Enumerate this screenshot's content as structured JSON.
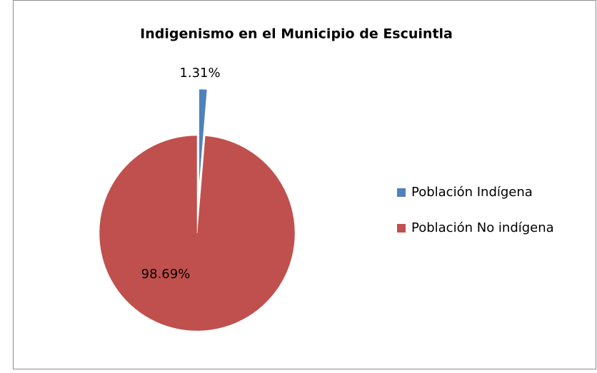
{
  "chart_data": {
    "type": "pie",
    "title": "Indigenismo en el Municipio de Escuintla",
    "categories": [
      "Población Indígena",
      "Población No indígena"
    ],
    "values": [
      1.31,
      98.69
    ],
    "value_labels": [
      "1.31%",
      "98.69%"
    ],
    "colors": [
      "#4f81bd",
      "#c0504d"
    ],
    "legend": "right"
  }
}
